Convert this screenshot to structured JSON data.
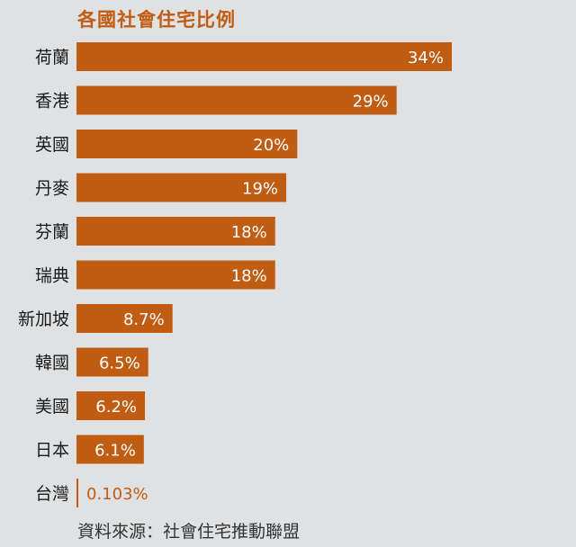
{
  "chart_data": {
    "type": "bar",
    "orientation": "horizontal",
    "title": "各國社會住宅比例",
    "categories": [
      "荷蘭",
      "香港",
      "英國",
      "丹麥",
      "芬蘭",
      "瑞典",
      "新加坡",
      "韓國",
      "美國",
      "日本",
      "台灣"
    ],
    "values": [
      34,
      29,
      20,
      19,
      18,
      18,
      8.7,
      6.5,
      6.2,
      6.1,
      0.103
    ],
    "value_labels": [
      "34%",
      "29%",
      "20%",
      "19%",
      "18%",
      "18%",
      "8.7%",
      "6.5%",
      "6.2%",
      "6.1%",
      "0.103%"
    ],
    "unit": "%",
    "xlim": [
      0,
      34
    ],
    "grid": false,
    "legend": "none"
  },
  "colors": {
    "bar": "#c05d13",
    "background": "#dfe1e3",
    "title": "#c05d13",
    "label_inside": "#ffffff",
    "label_outside": "#c05d13"
  },
  "source": "資料來源：社會住宅推動聯盟"
}
